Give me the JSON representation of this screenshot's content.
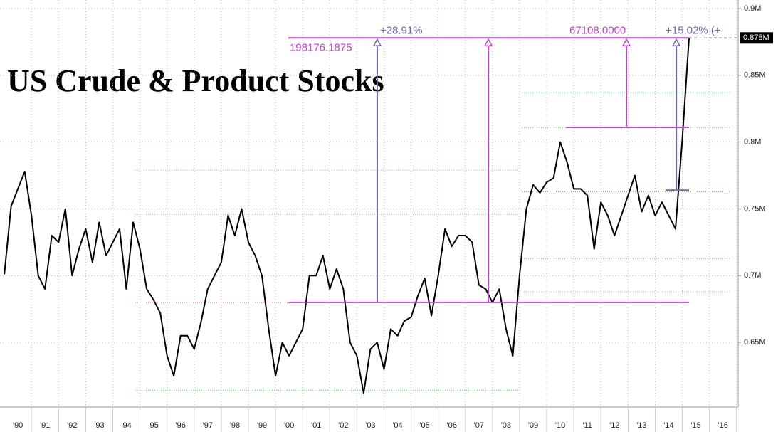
{
  "chart_data": {
    "type": "line",
    "title": "US Crude & Product Stocks",
    "x": [
      1990,
      1990.25,
      1990.5,
      1990.75,
      1991,
      1991.25,
      1991.5,
      1991.75,
      1992,
      1992.25,
      1992.5,
      1992.75,
      1993,
      1993.25,
      1993.5,
      1993.75,
      1994,
      1994.25,
      1994.5,
      1994.75,
      1995,
      1995.25,
      1995.5,
      1995.75,
      1996,
      1996.25,
      1996.5,
      1996.75,
      1997,
      1997.25,
      1997.5,
      1997.75,
      1998,
      1998.25,
      1998.5,
      1998.75,
      1999,
      1999.25,
      1999.5,
      1999.75,
      2000,
      2000.25,
      2000.5,
      2000.75,
      2001,
      2001.25,
      2001.5,
      2001.75,
      2002,
      2002.25,
      2002.5,
      2002.75,
      2003,
      2003.25,
      2003.5,
      2003.75,
      2004,
      2004.25,
      2004.5,
      2004.75,
      2005,
      2005.25,
      2005.5,
      2005.75,
      2006,
      2006.25,
      2006.5,
      2006.75,
      2007,
      2007.25,
      2007.5,
      2007.75,
      2008,
      2008.25,
      2008.5,
      2008.75,
      2009,
      2009.25,
      2009.5,
      2009.75,
      2010,
      2010.25,
      2010.5,
      2010.75,
      2011,
      2011.25,
      2011.5,
      2011.75,
      2012,
      2012.25,
      2012.5,
      2012.75,
      2013,
      2013.25,
      2013.5,
      2013.75,
      2014,
      2014.25,
      2014.5,
      2014.75,
      2015,
      2015.25
    ],
    "series": [
      {
        "color": "#000000",
        "values": [
          0.701,
          0.752,
          0.765,
          0.778,
          0.745,
          0.7,
          0.69,
          0.73,
          0.725,
          0.75,
          0.7,
          0.72,
          0.735,
          0.71,
          0.74,
          0.715,
          0.725,
          0.735,
          0.69,
          0.74,
          0.72,
          0.69,
          0.682,
          0.672,
          0.64,
          0.625,
          0.655,
          0.655,
          0.645,
          0.665,
          0.69,
          0.7,
          0.71,
          0.745,
          0.73,
          0.75,
          0.725,
          0.715,
          0.7,
          0.66,
          0.625,
          0.65,
          0.64,
          0.65,
          0.66,
          0.7,
          0.7,
          0.715,
          0.69,
          0.705,
          0.69,
          0.65,
          0.64,
          0.612,
          0.645,
          0.65,
          0.63,
          0.66,
          0.655,
          0.666,
          0.669,
          0.685,
          0.698,
          0.67,
          0.7,
          0.735,
          0.722,
          0.73,
          0.73,
          0.725,
          0.693,
          0.69,
          0.68,
          0.69,
          0.66,
          0.64,
          0.7,
          0.75,
          0.768,
          0.762,
          0.77,
          0.773,
          0.8,
          0.785,
          0.765,
          0.765,
          0.76,
          0.72,
          0.755,
          0.745,
          0.73,
          0.745,
          0.76,
          0.775,
          0.748,
          0.76,
          0.745,
          0.755,
          0.745,
          0.735,
          0.802,
          0.878
        ]
      }
    ],
    "last_value_label": "0.878M",
    "xlim": [
      1989.84,
      2017.06
    ],
    "ylim": [
      0.6016,
      0.9064
    ],
    "xticks": [
      {
        "value": 1990.5,
        "label": "'90"
      },
      {
        "value": 1991.5,
        "label": "'91"
      },
      {
        "value": 1992.5,
        "label": "'92"
      },
      {
        "value": 1993.5,
        "label": "'93"
      },
      {
        "value": 1994.5,
        "label": "'94"
      },
      {
        "value": 1995.5,
        "label": "'95"
      },
      {
        "value": 1996.5,
        "label": "'96"
      },
      {
        "value": 1997.5,
        "label": "'97"
      },
      {
        "value": 1998.5,
        "label": "'98"
      },
      {
        "value": 1999.5,
        "label": "'99"
      },
      {
        "value": 2000.5,
        "label": "'00"
      },
      {
        "value": 2001.5,
        "label": "'01"
      },
      {
        "value": 2002.5,
        "label": "'02"
      },
      {
        "value": 2003.5,
        "label": "'03"
      },
      {
        "value": 2004.5,
        "label": "'04"
      },
      {
        "value": 2005.5,
        "label": "'05"
      },
      {
        "value": 2006.5,
        "label": "'06"
      },
      {
        "value": 2007.5,
        "label": "'07"
      },
      {
        "value": 2008.5,
        "label": "'08"
      },
      {
        "value": 2009.5,
        "label": "'09"
      },
      {
        "value": 2010.5,
        "label": "'10"
      },
      {
        "value": 2011.5,
        "label": "'11"
      },
      {
        "value": 2012.5,
        "label": "'12"
      },
      {
        "value": 2013.5,
        "label": "'13"
      },
      {
        "value": 2014.5,
        "label": "'14"
      },
      {
        "value": 2015.5,
        "label": "'15"
      },
      {
        "value": 2016.5,
        "label": "'16"
      }
    ],
    "yticks": [
      {
        "value": 0.65,
        "label": "0.65M"
      },
      {
        "value": 0.7,
        "label": "0.7M"
      },
      {
        "value": 0.75,
        "label": "0.75M"
      },
      {
        "value": 0.8,
        "label": "0.8M"
      },
      {
        "value": 0.85,
        "label": "0.85M"
      },
      {
        "value": 0.9,
        "label": "0.9M"
      }
    ],
    "grid": true,
    "levels": [
      {
        "value": 0.779,
        "x": [
          1994.83,
          2008.95
        ],
        "color": "#5ad0e8"
      },
      {
        "value": 0.746,
        "x": [
          1994.83,
          2008.95
        ],
        "color": "#33c433"
      },
      {
        "value": 0.68,
        "x": [
          1994.83,
          2000.47
        ],
        "color": "#c0392b"
      },
      {
        "value": 0.614,
        "x": [
          1994.83,
          2008.95
        ],
        "color": "#33c433"
      },
      {
        "value": 0.837,
        "x": [
          2009.08,
          2016.74
        ],
        "color": "#5ad0e8"
      },
      {
        "value": 0.811,
        "x": [
          2009.08,
          2016.74
        ],
        "color": "#33c433"
      },
      {
        "value": 0.763,
        "x": [
          2009.08,
          2016.74
        ],
        "color": "#c0392b"
      },
      {
        "value": 0.713,
        "x": [
          2009.08,
          2016.74
        ],
        "color": "#33c433"
      },
      {
        "value": 0.688,
        "x": [
          2009.08,
          2016.74
        ],
        "color": "#5ad0e8"
      }
    ],
    "hlines": [
      {
        "value": 0.878,
        "x": [
          2000.47,
          2015.25
        ],
        "color": "#b64bc2"
      },
      {
        "value": 0.68,
        "x": [
          2000.47,
          2015.25
        ],
        "color": "#b64bc2"
      },
      {
        "value": 0.811,
        "x": [
          2010.71,
          2015.25
        ],
        "color": "#b64bc2"
      },
      {
        "value": 0.764,
        "x": [
          2014.38,
          2015.25
        ],
        "color": "#6a6aa8"
      }
    ],
    "annotations": [
      {
        "text": "+28.91%",
        "x": 2003.75,
        "from": 0.68,
        "to": 0.878,
        "color": "#6a6aa8",
        "side": "right"
      },
      {
        "text": "198176.1875",
        "x": 2007.85,
        "from": 0.68,
        "to": 0.878,
        "color": "#b64bc2",
        "side": "below-left"
      },
      {
        "text": "67108.0000",
        "x": 2012.94,
        "from": 0.811,
        "to": 0.878,
        "color": "#b64bc2",
        "side": "left"
      },
      {
        "text": "+15.02% (+",
        "x": 2014.78,
        "from": 0.764,
        "to": 0.878,
        "color": "#6a6aa8",
        "side": "leftmid"
      }
    ]
  }
}
